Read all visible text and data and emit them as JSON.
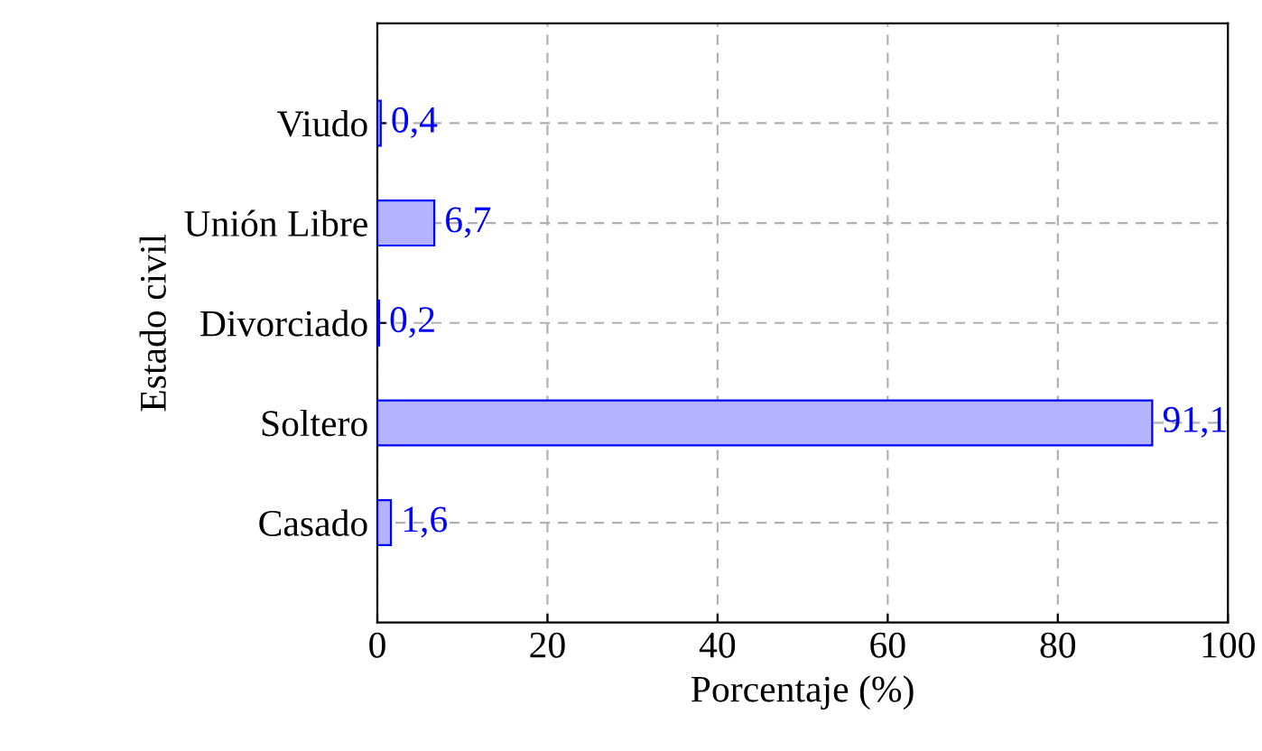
{
  "chart_data": {
    "type": "bar",
    "orientation": "horizontal",
    "xlabel": "Porcentaje (%)",
    "ylabel": "Estado civil",
    "categories": [
      "Viudo",
      "Unión Libre",
      "Divorciado",
      "Soltero",
      "Casado"
    ],
    "values": [
      0.4,
      6.7,
      0.2,
      91.1,
      1.6
    ],
    "value_labels": [
      "0,4",
      "6,7",
      "0,2",
      "91,1",
      "1,6"
    ],
    "color": "#b3b3ff",
    "xlim": [
      0,
      100
    ],
    "xticks": [
      0,
      20,
      40,
      60,
      80,
      100
    ],
    "grid": true
  }
}
